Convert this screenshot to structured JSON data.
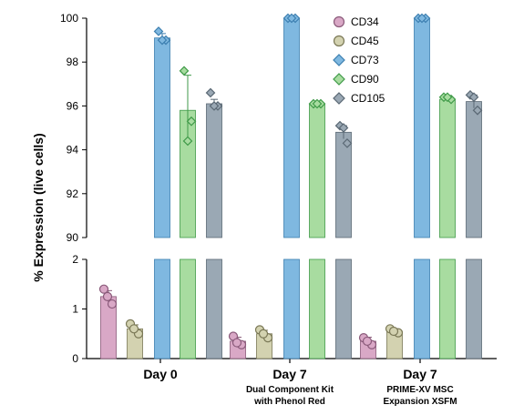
{
  "chart_data": {
    "type": "bar",
    "ylabel": "% Expression (live cells)",
    "broken_axis": true,
    "y_upper": {
      "ylim": [
        90,
        100
      ],
      "ticks": [
        90,
        92,
        94,
        96,
        98,
        100
      ]
    },
    "y_lower": {
      "ylim": [
        0,
        2
      ],
      "ticks": [
        0,
        1,
        2
      ]
    },
    "groups": [
      {
        "label": "Day 0",
        "sub": []
      },
      {
        "label": "Day 7",
        "sub": [
          "Dual Component Kit",
          "with Phenol Red"
        ]
      },
      {
        "label": "Day 7",
        "sub": [
          "PRIME-XV MSC",
          "Expansion XSFM"
        ]
      }
    ],
    "legend_position": "top-right",
    "series": [
      {
        "name": "CD34",
        "color": "#d9a8c6",
        "stroke": "#8a5a7a",
        "marker": "circle",
        "values": [
          1.25,
          0.35,
          0.35
        ],
        "errors": [
          0.12,
          0.08,
          0.08
        ],
        "points": [
          [
            1.4,
            1.1,
            1.25
          ],
          [
            0.45,
            0.28,
            0.32
          ],
          [
            0.42,
            0.28,
            0.35
          ]
        ]
      },
      {
        "name": "CD45",
        "color": "#d3d2b0",
        "stroke": "#7a7856",
        "marker": "circle",
        "values": [
          0.6,
          0.5,
          0.55
        ],
        "errors": [
          0.08,
          0.07,
          0.05
        ],
        "points": [
          [
            0.7,
            0.5,
            0.6
          ],
          [
            0.58,
            0.42,
            0.5
          ],
          [
            0.6,
            0.52,
            0.55
          ]
        ]
      },
      {
        "name": "CD73",
        "color": "#7fb8e0",
        "stroke": "#3d7fb0",
        "marker": "diamond",
        "values": [
          99.1,
          100,
          100
        ],
        "errors": [
          0.2,
          0.0,
          0.0
        ],
        "points": [
          [
            99.4,
            99.0,
            99.0
          ],
          [
            100,
            100,
            100
          ],
          [
            100,
            100,
            100
          ]
        ]
      },
      {
        "name": "CD90",
        "color": "#a8dca0",
        "stroke": "#3f9a48",
        "marker": "diamond",
        "values": [
          95.8,
          96.1,
          96.3
        ],
        "errors": [
          1.6,
          0.0,
          0.1
        ],
        "points": [
          [
            97.6,
            95.3,
            94.4
          ],
          [
            96.1,
            96.1,
            96.1
          ],
          [
            96.4,
            96.3,
            96.4
          ]
        ]
      },
      {
        "name": "CD105",
        "color": "#9aa8b4",
        "stroke": "#5a6874",
        "marker": "diamond",
        "values": [
          96.1,
          94.8,
          96.2
        ],
        "errors": [
          0.2,
          0.3,
          0.3
        ],
        "points": [
          [
            96.6,
            96.0,
            96.0
          ],
          [
            95.1,
            94.3,
            95.0
          ],
          [
            96.5,
            95.8,
            96.4
          ]
        ]
      }
    ]
  }
}
